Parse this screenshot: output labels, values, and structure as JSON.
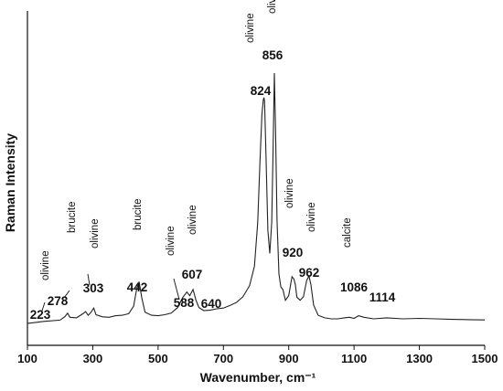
{
  "chart_data": {
    "type": "line",
    "title": "",
    "xlabel": "Wavenumber, cm⁻¹",
    "ylabel": "Raman Intensity",
    "xlim": [
      100,
      1500
    ],
    "ylim": [
      0,
      1
    ],
    "xticks": [
      "100",
      "300",
      "500",
      "700",
      "900",
      "1100",
      "1300",
      "1500"
    ],
    "grid": false,
    "line_color": "#222222",
    "series": [
      {
        "name": "",
        "x": [
          100,
          150,
          200,
          215,
          223,
          230,
          250,
          270,
          278,
          286,
          295,
          303,
          310,
          330,
          350,
          370,
          390,
          410,
          425,
          435,
          442,
          450,
          460,
          480,
          500,
          520,
          540,
          560,
          575,
          588,
          597,
          607,
          616,
          625,
          640,
          660,
          680,
          700,
          720,
          740,
          760,
          780,
          795,
          805,
          812,
          818,
          822,
          824,
          826,
          830,
          836,
          842,
          848,
          852,
          856,
          860,
          864,
          870,
          876,
          882,
          890,
          900,
          910,
          916,
          920,
          925,
          935,
          945,
          955,
          962,
          968,
          976,
          990,
          1010,
          1030,
          1050,
          1070,
          1086,
          1100,
          1114,
          1130,
          1160,
          1200,
          1250,
          1300,
          1350,
          1400,
          1450,
          1500
        ],
        "y": [
          0.028,
          0.036,
          0.041,
          0.055,
          0.068,
          0.052,
          0.05,
          0.066,
          0.074,
          0.06,
          0.072,
          0.088,
          0.062,
          0.054,
          0.052,
          0.058,
          0.06,
          0.066,
          0.095,
          0.165,
          0.19,
          0.128,
          0.072,
          0.06,
          0.058,
          0.062,
          0.068,
          0.09,
          0.128,
          0.15,
          0.136,
          0.16,
          0.118,
          0.09,
          0.078,
          0.08,
          0.085,
          0.088,
          0.098,
          0.11,
          0.132,
          0.175,
          0.25,
          0.42,
          0.66,
          0.84,
          0.896,
          0.905,
          0.89,
          0.7,
          0.39,
          0.3,
          0.42,
          0.7,
          1.0,
          0.76,
          0.43,
          0.22,
          0.17,
          0.16,
          0.118,
          0.136,
          0.21,
          0.2,
          0.18,
          0.13,
          0.118,
          0.132,
          0.196,
          0.212,
          0.178,
          0.1,
          0.06,
          0.05,
          0.046,
          0.046,
          0.05,
          0.052,
          0.048,
          0.058,
          0.052,
          0.046,
          0.05,
          0.046,
          0.048,
          0.046,
          0.044,
          0.043,
          0.042
        ]
      }
    ],
    "peak_labels": [
      {
        "x": 223,
        "text": "223",
        "mineral": "olivine"
      },
      {
        "x": 278,
        "text": "278",
        "mineral": "brucite"
      },
      {
        "x": 303,
        "text": "303",
        "mineral": "olivine"
      },
      {
        "x": 442,
        "text": "442",
        "mineral": "brucite"
      },
      {
        "x": 588,
        "text": "588",
        "mineral": "olivine"
      },
      {
        "x": 607,
        "text": "607",
        "mineral": "olivine"
      },
      {
        "x": 640,
        "text": "640",
        "mineral": ""
      },
      {
        "x": 824,
        "text": "824",
        "mineral": "olivine"
      },
      {
        "x": 856,
        "text": "856",
        "mineral": "olivine"
      },
      {
        "x": 920,
        "text": "920",
        "mineral": "olivine"
      },
      {
        "x": 962,
        "text": "962",
        "mineral": "olivine"
      },
      {
        "x": 1086,
        "text": "1086",
        "mineral": "calcite"
      },
      {
        "x": 1114,
        "text": "1114",
        "mineral": ""
      }
    ]
  }
}
